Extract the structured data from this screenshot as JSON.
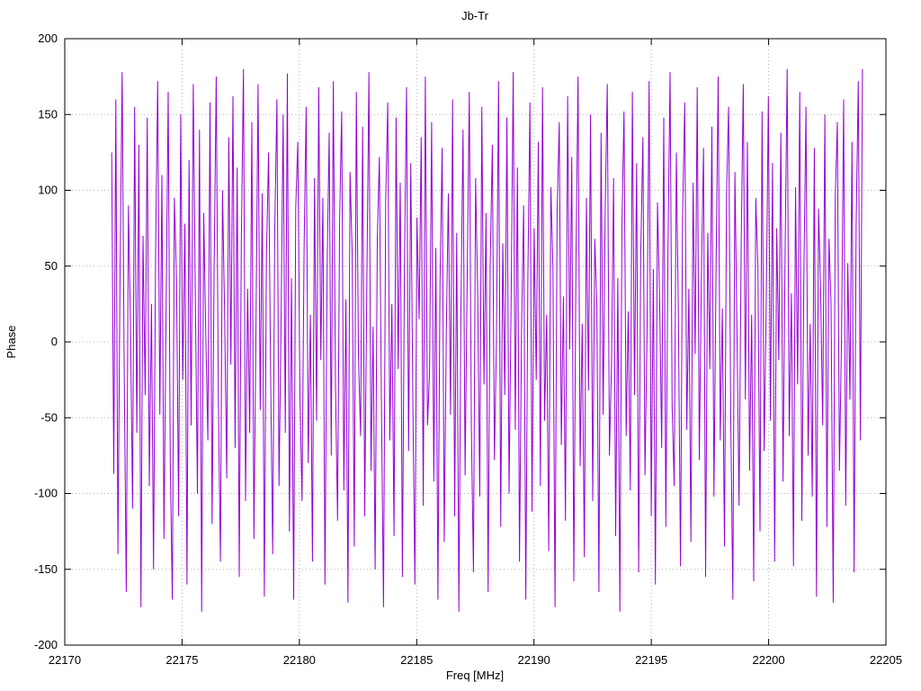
{
  "chart_data": {
    "type": "line",
    "title": "Jb-Tr",
    "xlabel": "Freq [MHz]",
    "ylabel": "Phase",
    "xlim": [
      22170,
      22205
    ],
    "ylim": [
      -200,
      200
    ],
    "x_ticks": [
      22170,
      22175,
      22180,
      22185,
      22190,
      22195,
      22200,
      22205
    ],
    "y_ticks": [
      -200,
      -150,
      -100,
      -50,
      0,
      50,
      100,
      150,
      200
    ],
    "grid": true,
    "legend_position": "none",
    "line_color": "#9400d3",
    "grid_color": "#b0b0b0",
    "border_color": "#000000",
    "x_data_range": [
      22172,
      22204
    ],
    "y_values": [
      125,
      -87,
      160,
      -140,
      45,
      178,
      -20,
      -165,
      90,
      10,
      -110,
      155,
      -60,
      130,
      -175,
      70,
      -35,
      148,
      -95,
      25,
      -150,
      60,
      172,
      -48,
      110,
      -130,
      15,
      165,
      -80,
      -170,
      95,
      40,
      -115,
      150,
      -25,
      78,
      -160,
      120,
      -55,
      170,
      30,
      -100,
      140,
      -178,
      85,
      5,
      -65,
      158,
      -120,
      50,
      175,
      -40,
      -145,
      100,
      20,
      -90,
      135,
      -15,
      162,
      -70,
      115,
      -155,
      65,
      180,
      -105,
      35,
      -60,
      145,
      -130,
      8,
      170,
      -45,
      98,
      -168,
      55,
      125,
      -22,
      -140,
      75,
      160,
      -95,
      12,
      150,
      -60,
      177,
      -125,
      42,
      -170,
      88,
      132,
      -30,
      -105,
      62,
      155,
      -80,
      18,
      -145,
      108,
      -52,
      168,
      -12,
      95,
      -160,
      48,
      138,
      -75,
      172,
      -28,
      -118,
      80,
      152,
      -98,
      28,
      -172,
      112,
      58,
      -135,
      165,
      -8,
      -62,
      142,
      -115,
      35,
      178,
      -85,
      10,
      -150,
      68,
      122,
      -42,
      -175,
      92,
      158,
      -65,
      25,
      -128,
      148,
      -18,
      105,
      -155,
      52,
      168,
      -72,
      118,
      -38,
      -160,
      82,
      15,
      135,
      -108,
      175,
      -55,
      -20,
      145,
      -92,
      62,
      -170,
      38,
      128,
      -132,
      5,
      98,
      -48,
      160,
      -115,
      72,
      -178,
      22,
      140,
      -88,
      45,
      165,
      -58,
      -152,
      108,
      32,
      -102,
      155,
      -28,
      85,
      -165,
      50,
      130,
      -78,
      2,
      172,
      -122,
      65,
      -35,
      148,
      -100,
      28,
      178,
      -58,
      115,
      -145,
      8,
      90,
      -170,
      42,
      158,
      -112,
      75,
      -25,
      132,
      -95,
      168,
      -52,
      18,
      -138,
      102,
      48,
      -175,
      85,
      145,
      -68,
      30,
      -118,
      162,
      -5,
      122,
      -158,
      55,
      175,
      -82,
      12,
      -142,
      95,
      -32,
      150,
      -105,
      68,
      25,
      -165,
      138,
      -48,
      88,
      170,
      -75,
      -15,
      108,
      -128,
      42,
      -178,
      78,
      152,
      -62,
      20,
      -98,
      165,
      -35,
      118,
      -152,
      58,
      135,
      -88,
      5,
      172,
      -115,
      48,
      -160,
      92,
      28,
      -70,
      148,
      -122,
      62,
      178,
      -42,
      -95,
      125,
      15,
      -148,
      82,
      158,
      -58,
      35,
      -132,
      105,
      -8,
      168,
      -78,
      45,
      128,
      -155,
      72,
      -18,
      142,
      -102,
      52,
      175,
      -65,
      22,
      -135,
      98,
      155,
      -45,
      -170,
      112,
      8,
      -108,
      65,
      170,
      -38,
      132,
      -85,
      18,
      -158,
      95,
      48,
      -125,
      152,
      -72,
      28,
      162,
      -52,
      118,
      -145,
      75,
      -12,
      138,
      -92,
      58,
      180,
      -62,
      32,
      -148,
      102,
      -28,
      165,
      -118,
      45,
      155,
      -75,
      12,
      -102,
      128,
      -168,
      88,
      35,
      -55,
      150,
      -122,
      68,
      25,
      -172,
      95,
      145,
      -85,
      5,
      160,
      -108,
      52,
      -38,
      132,
      -152,
      78,
      172,
      -65,
      180
    ]
  }
}
